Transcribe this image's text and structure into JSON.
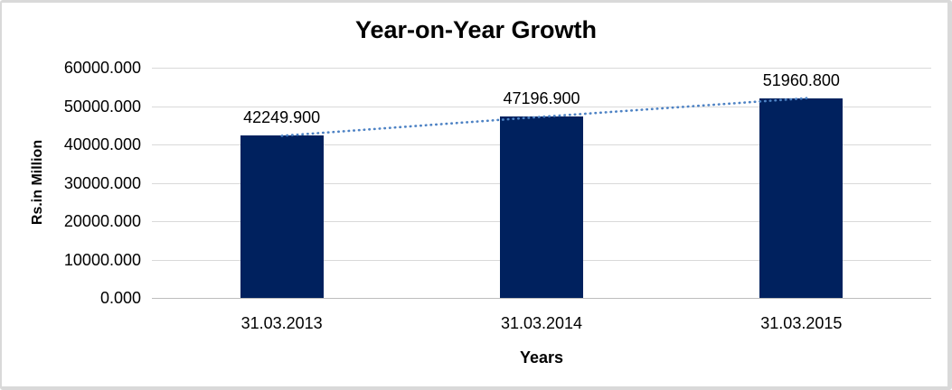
{
  "chart_data": {
    "type": "bar",
    "title": "Year-on-Year Growth",
    "xlabel": "Years",
    "ylabel": "Rs.in Million",
    "categories": [
      "31.03.2013",
      "31.03.2014",
      "31.03.2015"
    ],
    "values": [
      42249.9,
      47196.9,
      51960.8
    ],
    "data_labels": [
      "42249.900",
      "47196.900",
      "51960.800"
    ],
    "ylim": [
      0,
      60000
    ],
    "ytick_step": 10000,
    "ytick_labels": [
      "0.000",
      "10000.000",
      "20000.000",
      "30000.000",
      "40000.000",
      "50000.000",
      "60000.000"
    ],
    "grid": true,
    "legend_position": "none",
    "has_trendline": true,
    "trendline_style": "dotted",
    "colors": {
      "bar": "#00215e",
      "trendline": "#4d82c4",
      "gridline": "#d9d9d9",
      "axis_line": "#bdbdbd",
      "text": "#000000",
      "frame_border": "#d9d9d9",
      "background": "#ffffff"
    }
  }
}
